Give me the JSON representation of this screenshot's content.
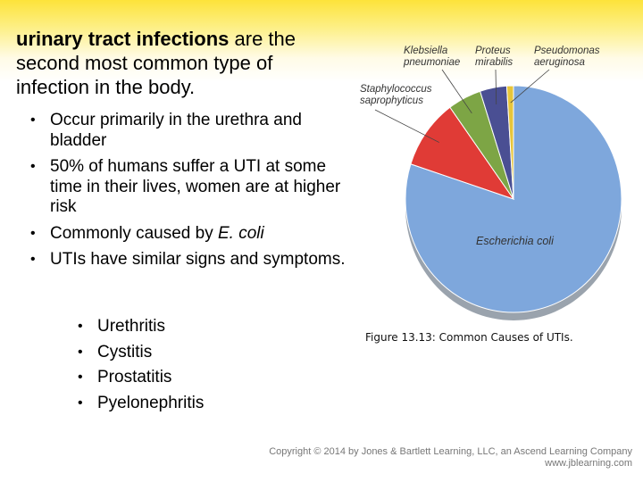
{
  "heading": {
    "bold": "urinary tract infections",
    "rest": " are the second most common type of infection in the body."
  },
  "bullets": [
    {
      "text": "Occur primarily in the urethra and bladder"
    },
    {
      "text": "50% of humans suffer a UTI at some time in their lives, women are at higher risk"
    },
    {
      "before": "Commonly caused by ",
      "italic": "E. coli",
      "after": ""
    },
    {
      "text": "UTIs have similar signs and symptoms."
    }
  ],
  "subbullets": [
    "Urethritis",
    "Cystitis",
    "Prostatitis",
    "Pyelonephritis"
  ],
  "chart_data": {
    "type": "pie",
    "title": "",
    "slices": [
      {
        "label": "Escherichia coli",
        "value": 80,
        "color": "#7ea7dc"
      },
      {
        "label": "Staphylococcus saprophyticus",
        "value": 10,
        "color": "#e03b36"
      },
      {
        "label": "Klebsiella pneumoniae",
        "value": 5,
        "color": "#7da545"
      },
      {
        "label": "Proteus mirabilis",
        "value": 4,
        "color": "#4a4f93"
      },
      {
        "label": "Pseudomonas aeruginosa",
        "value": 1,
        "color": "#e7c53a"
      }
    ]
  },
  "chart_labels": {
    "klebsiella": [
      "Klebsiella",
      "pneumoniae"
    ],
    "proteus": [
      "Proteus",
      "mirabilis"
    ],
    "pseudomonas": [
      "Pseudomonas",
      "aeruginosa"
    ],
    "staph": [
      "Staphylococcus",
      "saprophyticus"
    ],
    "ecoli": "Escherichia coli"
  },
  "caption": "Figure 13.13: Common Causes of UTIs.",
  "copyright": {
    "line1": "Copyright © 2014 by Jones & Bartlett Learning, LLC, an Ascend Learning Company",
    "line2": "www.jblearning.com"
  }
}
